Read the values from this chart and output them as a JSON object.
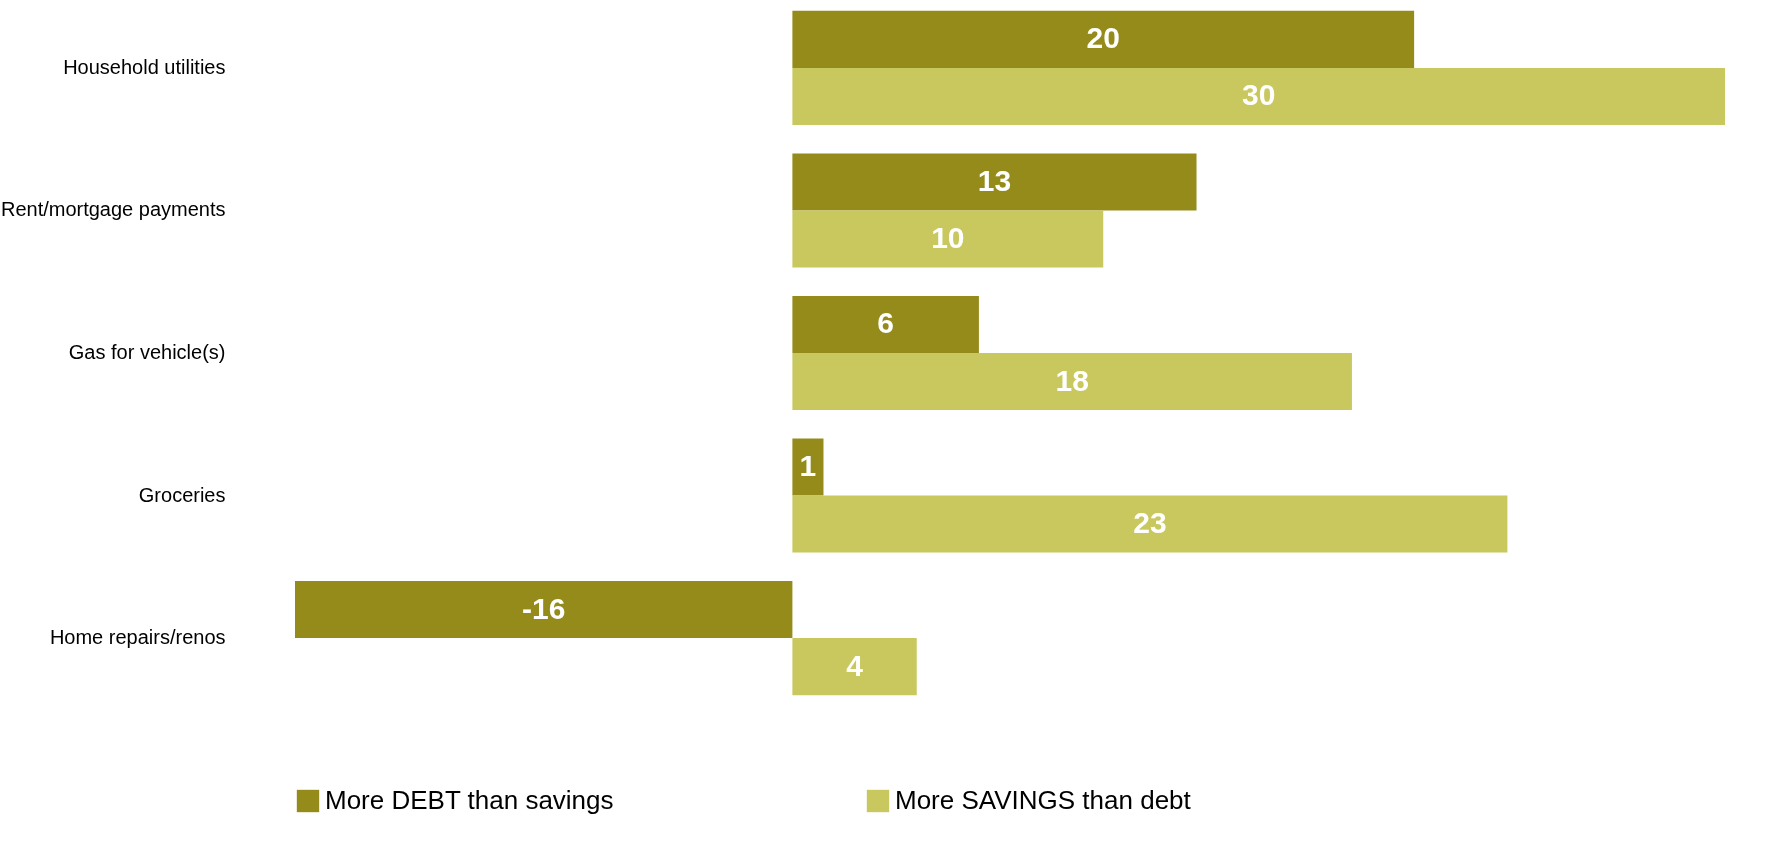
{
  "chart_data": {
    "type": "bar",
    "orientation": "horizontal",
    "categories": [
      "Household utilities",
      "Rent/mortgage payments",
      "Gas for vehicle(s)",
      "Groceries",
      "Home repairs/renos"
    ],
    "series": [
      {
        "name": "More DEBT than savings",
        "color": "#958b1a",
        "values": [
          20,
          13,
          6,
          1,
          -16
        ]
      },
      {
        "name": "More SAVINGS than debt",
        "color": "#c8c85f",
        "values": [
          30,
          10,
          18,
          23,
          4
        ]
      }
    ],
    "xlim": [
      -16,
      30
    ],
    "data_labels": true,
    "legend": "bottom",
    "grid": false
  }
}
